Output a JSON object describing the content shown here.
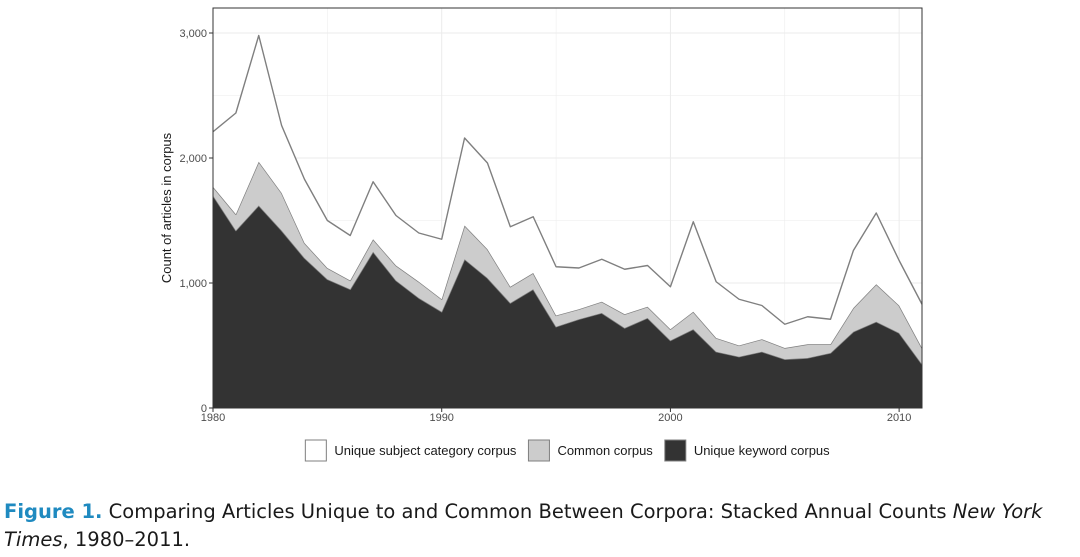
{
  "chart_data": {
    "type": "area",
    "stacked": true,
    "title": "",
    "xlabel": "",
    "ylabel": "Count of articles in corpus",
    "xlim": [
      1980,
      2011
    ],
    "ylim": [
      0,
      3200
    ],
    "x_ticks": [
      1980,
      1990,
      2000,
      2010
    ],
    "x_tick_labels": [
      "1980",
      "1990",
      "2000",
      "2010"
    ],
    "y_ticks": [
      0,
      1000,
      2000,
      3000
    ],
    "y_tick_labels": [
      "0",
      "1,000",
      "2,000",
      "3,000"
    ],
    "grid": true,
    "legend_position": "bottom",
    "x": [
      1980,
      1981,
      1982,
      1983,
      1984,
      1985,
      1986,
      1987,
      1988,
      1989,
      1990,
      1991,
      1992,
      1993,
      1994,
      1995,
      1996,
      1997,
      1998,
      1999,
      2000,
      2001,
      2002,
      2003,
      2004,
      2005,
      2006,
      2007,
      2008,
      2009,
      2010,
      2011
    ],
    "series": [
      {
        "name": "Unique keyword corpus",
        "color": "#333333",
        "values": [
          1700,
          1420,
          1620,
          1420,
          1200,
          1030,
          950,
          1250,
          1020,
          880,
          770,
          1190,
          1040,
          840,
          950,
          650,
          710,
          760,
          640,
          720,
          540,
          630,
          450,
          410,
          450,
          390,
          400,
          440,
          610,
          690,
          600,
          350
        ]
      },
      {
        "name": "Common corpus",
        "color": "#cccccc",
        "values": [
          70,
          130,
          350,
          300,
          120,
          90,
          70,
          100,
          120,
          130,
          100,
          270,
          230,
          130,
          130,
          90,
          80,
          90,
          110,
          90,
          90,
          140,
          110,
          90,
          100,
          90,
          110,
          70,
          190,
          300,
          220,
          130
        ]
      },
      {
        "name": "Unique subject category corpus",
        "color": "#ffffff",
        "values": [
          440,
          810,
          1010,
          540,
          510,
          380,
          360,
          460,
          400,
          390,
          480,
          700,
          690,
          480,
          450,
          390,
          330,
          340,
          360,
          330,
          340,
          720,
          450,
          370,
          270,
          190,
          220,
          200,
          460,
          570,
          360,
          350
        ]
      }
    ],
    "legend_order": [
      "Unique subject category corpus",
      "Common corpus",
      "Unique keyword corpus"
    ]
  },
  "caption": {
    "label": "Figure 1.",
    "text_before_italic": " Comparing Articles Unique to and Common Between Corpora: Stacked Annual Counts ",
    "italic": "New York Times",
    "text_after_italic": ", 1980–2011."
  }
}
